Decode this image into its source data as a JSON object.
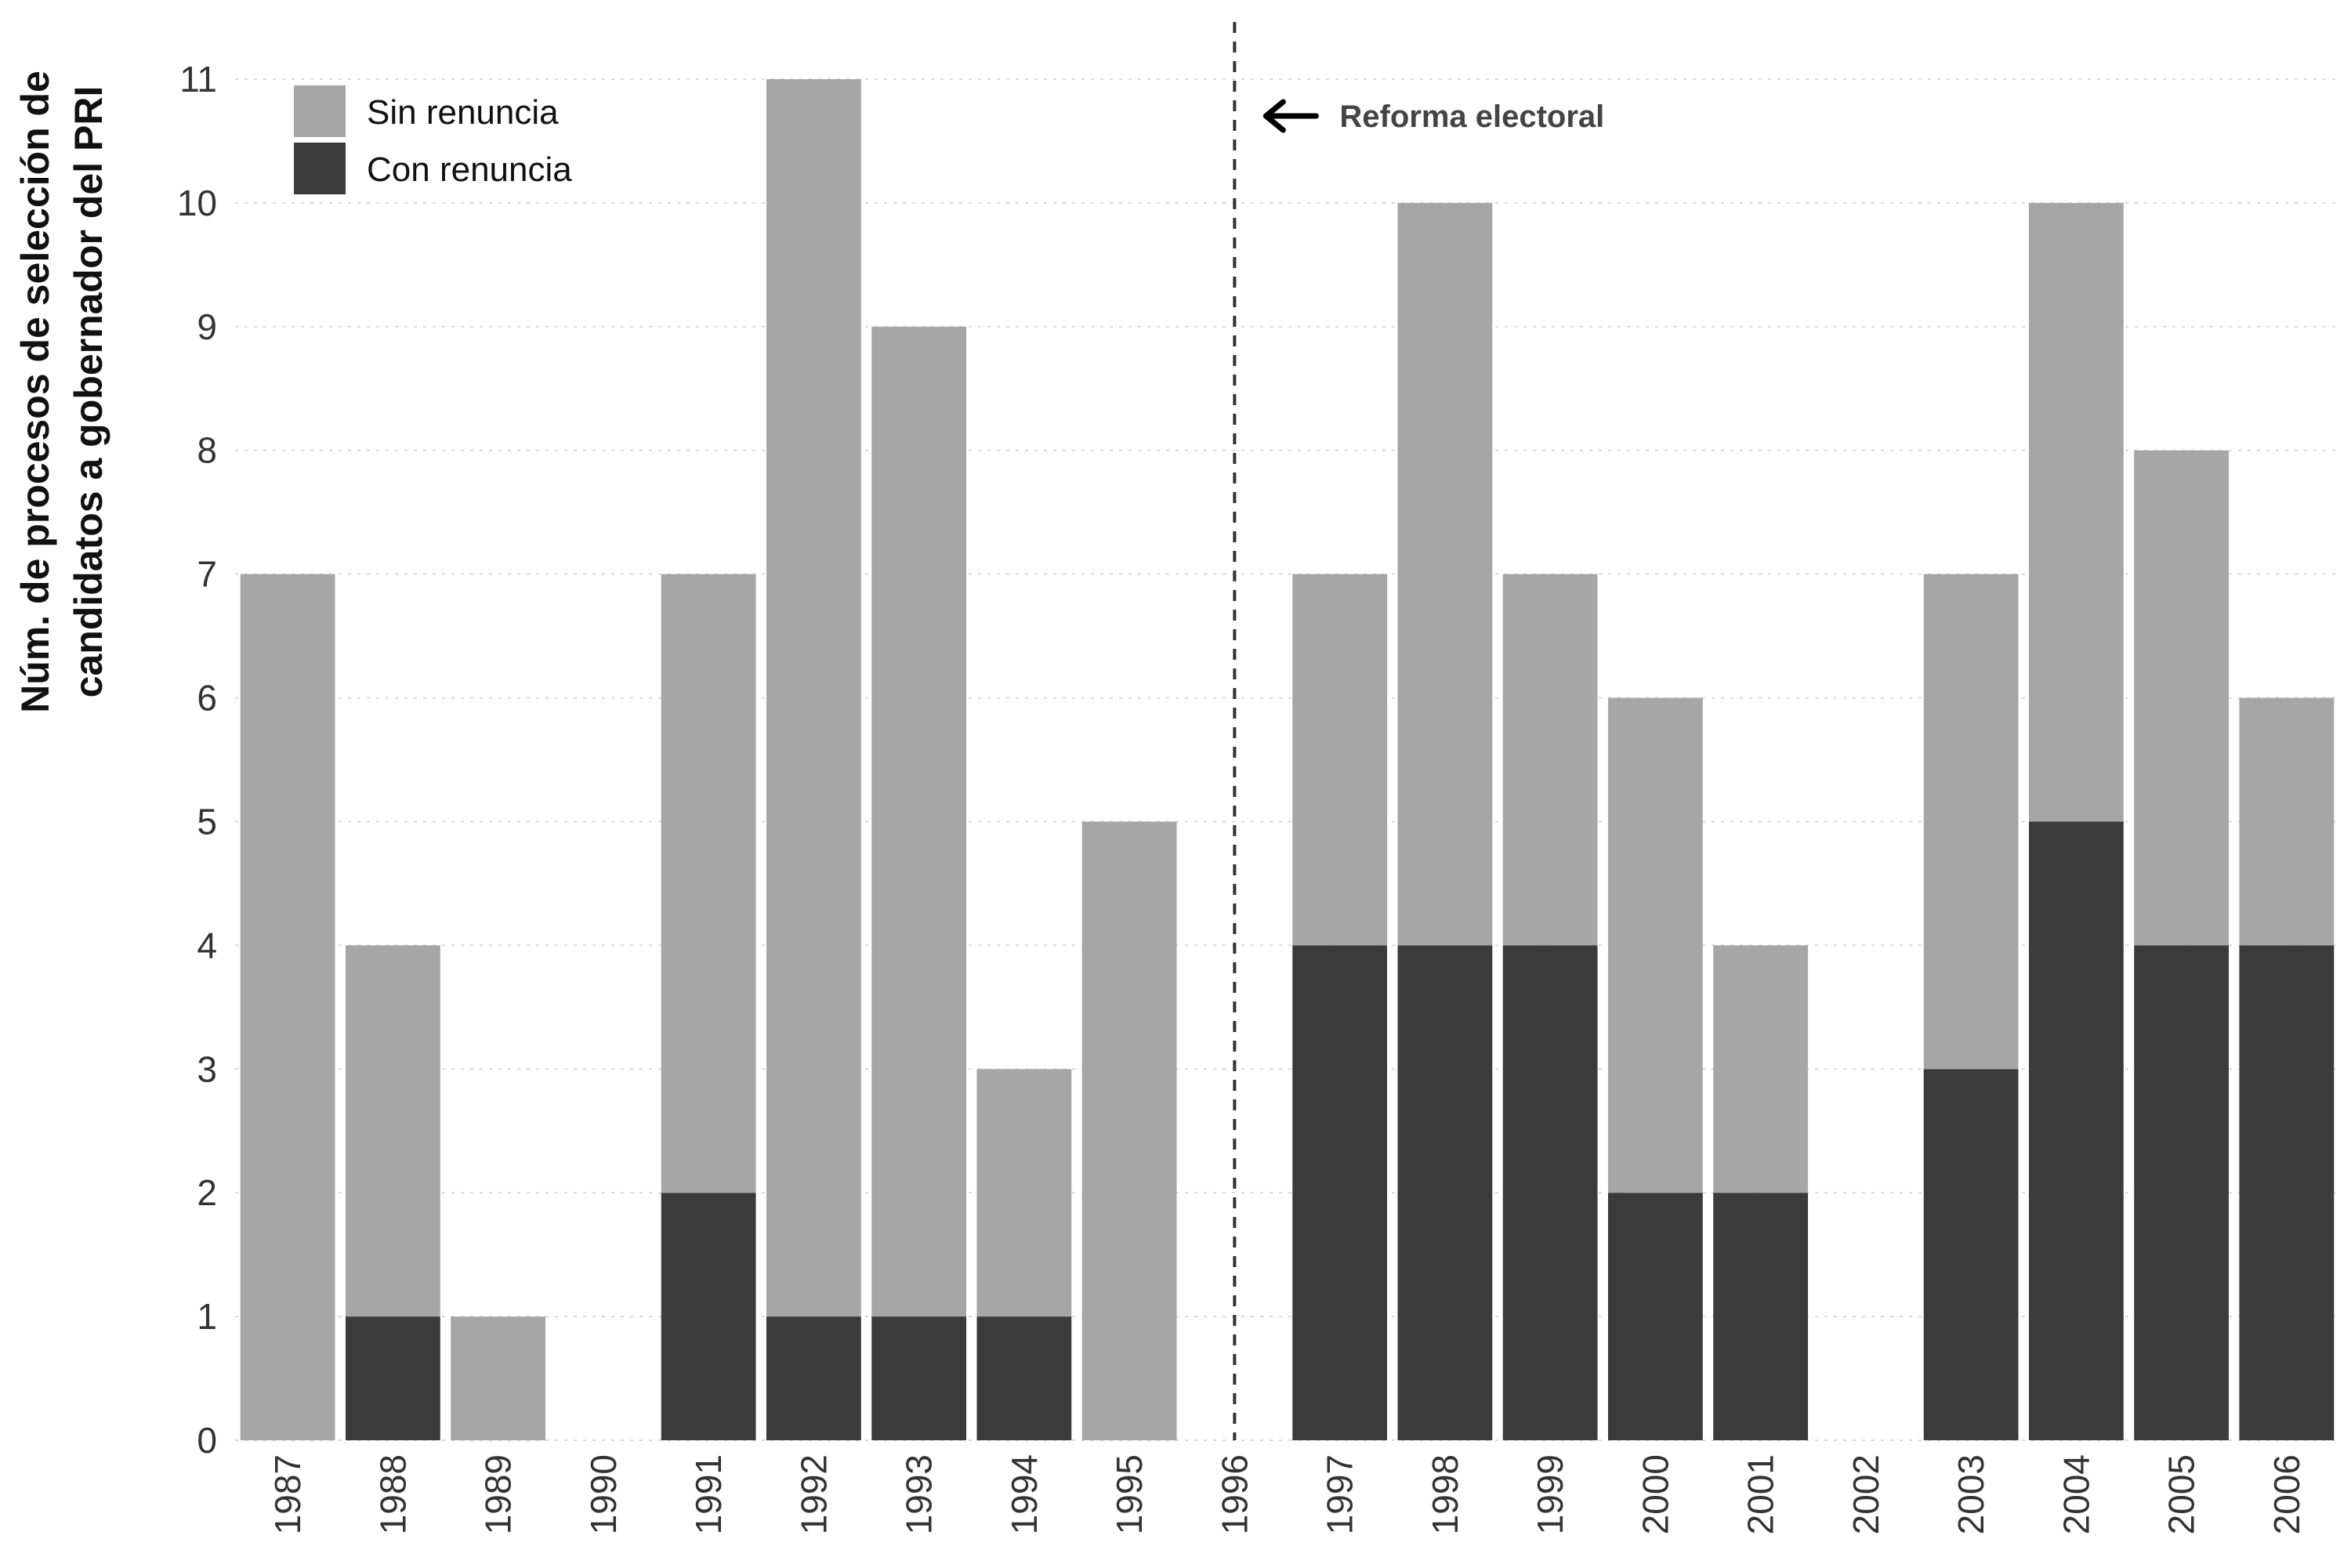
{
  "chart_data": {
    "type": "bar",
    "stacked": true,
    "categories": [
      "1987",
      "1988",
      "1989",
      "1990",
      "1991",
      "1992",
      "1993",
      "1994",
      "1995",
      "1996",
      "1997",
      "1998",
      "1999",
      "2000",
      "2001",
      "2002",
      "2003",
      "2004",
      "2005",
      "2006"
    ],
    "series": [
      {
        "name": "Con renuncia",
        "color": "#3b3b3b",
        "values": [
          0,
          1,
          0,
          0,
          2,
          1,
          1,
          1,
          0,
          0,
          4,
          4,
          4,
          2,
          2,
          0,
          3,
          5,
          4,
          4
        ]
      },
      {
        "name": "Sin renuncia",
        "color": "#a6a6a6",
        "values": [
          7,
          3,
          1,
          0,
          5,
          10,
          8,
          2,
          5,
          0,
          3,
          6,
          3,
          4,
          2,
          0,
          4,
          5,
          4,
          2
        ]
      }
    ],
    "title": "",
    "xlabel": "",
    "ylabel_lines": [
      "Núm. de procesos de selección de",
      "candidatos a gobernador del PRI"
    ],
    "ylim": [
      0,
      11
    ],
    "yticks": [
      0,
      1,
      2,
      3,
      4,
      5,
      6,
      7,
      8,
      9,
      10,
      11
    ],
    "grid": "horizontal dotted",
    "legend": {
      "placement": "top-left",
      "entries": [
        {
          "label": "Sin renuncia",
          "color": "#a6a6a6"
        },
        {
          "label": "Con renuncia",
          "color": "#3b3b3b"
        }
      ]
    },
    "annotation": {
      "text": "Reforma electoral",
      "at_category": "1996",
      "style": "dashed vertical line with left arrow"
    }
  }
}
